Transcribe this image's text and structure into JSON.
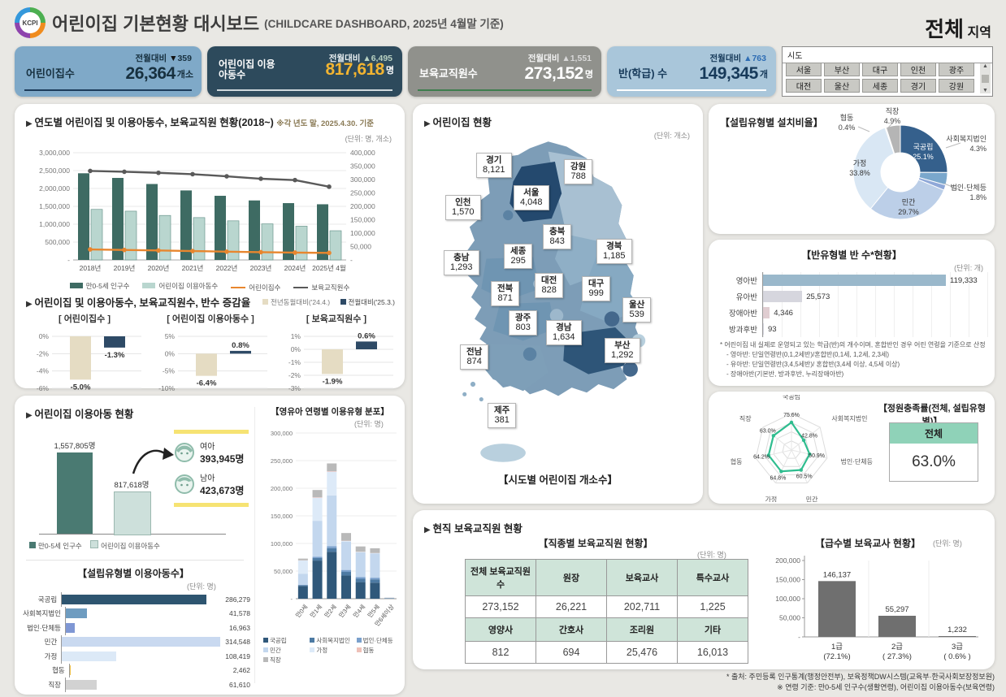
{
  "header": {
    "logo": "KCPI",
    "title": "어린이집 기본현황 대시보드",
    "subtitle": "(CHILDCARE DASHBOARD, 2025년 4월말 기준)",
    "region_value": "전체",
    "region_suffix": "지역"
  },
  "kpis": [
    {
      "label": "어린이집수",
      "value": "26,364",
      "unit": "개소",
      "delta_label": "전월대비",
      "delta_dir": "▼",
      "delta": "359"
    },
    {
      "label": "어린이집 이용아동수",
      "value": "817,618",
      "unit": "명",
      "delta_label": "전월대비",
      "delta_dir": "▲",
      "delta": "6,495"
    },
    {
      "label": "보육교직원수",
      "value": "273,152",
      "unit": "명",
      "delta_label": "전월대비",
      "delta_dir": "▲",
      "delta": "1,551"
    },
    {
      "label": "반(학급) 수",
      "value": "149,345",
      "unit": "개",
      "delta_label": "전월대비",
      "delta_dir": "▲",
      "delta": "763"
    }
  ],
  "sido_filter": {
    "title": "시도",
    "options": [
      "서울",
      "부산",
      "대구",
      "인천",
      "광주",
      "대전",
      "울산",
      "세종",
      "경기",
      "강원"
    ]
  },
  "footer": {
    "line1": "* 출처: 주민등록 인구통계(행정안전부), 보육정책DW시스템(교육부·한국사회보장정보원)",
    "line2": "※ 연령 기준: 만0-5세 인구수(생활연령), 어린이집 이용아동수(보육연령)"
  },
  "section_titles": {
    "staff": "현직 보육교직원 현황"
  },
  "chart_data": [
    {
      "id": "yearly",
      "type": "bar",
      "title": "연도별 어린이집 및 이용아동수, 보육교직원 현황(2018~)",
      "note": "※각 년도 말, 2025.4.30. 기준",
      "unit": "(단위: 명, 개소)",
      "categories": [
        "2018년",
        "2019년",
        "2020년",
        "2021년",
        "2022년",
        "2023년",
        "2024년",
        "2025년 4월"
      ],
      "series": [
        {
          "name": "만0-5세 인구수",
          "chart": "bar",
          "axis": "left",
          "color": "#3e6b63",
          "values": [
            2425000,
            2295000,
            2125000,
            1945000,
            1795000,
            1665000,
            1590000,
            1557805
          ]
        },
        {
          "name": "어린이집 이용아동수",
          "chart": "bar",
          "axis": "left",
          "color": "#b9d6cf",
          "stroke": "#6d988f",
          "values": [
            1415000,
            1365000,
            1245000,
            1185000,
            1095000,
            1010000,
            945000,
            817618
          ]
        },
        {
          "name": "어린이집수",
          "chart": "line",
          "axis": "right",
          "color": "#e8862e",
          "values": [
            39171,
            37371,
            35352,
            33246,
            30923,
            28954,
            27351,
            26364
          ]
        },
        {
          "name": "보육교직원수",
          "chart": "line",
          "axis": "right",
          "color": "#595959",
          "values": [
            332000,
            329000,
            325000,
            320000,
            312000,
            303000,
            298000,
            273152
          ]
        }
      ],
      "left_axis": {
        "min": 0,
        "max": 3000000,
        "tick_labels": [
          "3,000,000",
          "2,500,000",
          "2,000,000",
          "1,500,000",
          "1,000,000",
          "500,000",
          "-"
        ]
      },
      "right_axis": {
        "min": 0,
        "max": 400000,
        "tick_labels": [
          "400,000",
          "350,000",
          "300,000",
          "250,000",
          "200,000",
          "150,000",
          "100,000",
          "50,000",
          "-"
        ]
      }
    },
    {
      "id": "delta",
      "type": "bar",
      "title": "어린이집 및 이용아동수, 보육교직원수, 반수 증감율",
      "legend": [
        "전년동월대비('24.4.)",
        "전월대비('25.3.)"
      ],
      "colors": [
        "#e5dcc3",
        "#2e4a66"
      ],
      "charts": [
        {
          "title": "[ 어린이집수 ]",
          "ticks": [
            "0%",
            "-2%",
            "-4%",
            "-6%"
          ],
          "values": [
            -5.0,
            -1.3
          ],
          "labels": [
            "-5.0%",
            "-1.3%"
          ]
        },
        {
          "title": "[ 어린이집 이용아동수 ]",
          "ticks": [
            "5%",
            "0%",
            "-5%",
            "-10%"
          ],
          "values": [
            -6.4,
            0.8
          ],
          "labels": [
            "-6.4%",
            "0.8%"
          ]
        },
        {
          "title": "[ 보육교직원수 ]",
          "ticks": [
            "1%",
            "0%",
            "-1%",
            "-2%",
            "-3%"
          ],
          "values": [
            -1.9,
            0.6
          ],
          "labels": [
            "-1.9%",
            "0.6%"
          ]
        }
      ]
    },
    {
      "id": "usage",
      "type": "bar",
      "title": "어린이집 이용아동 현황",
      "bars": [
        {
          "name": "만0-5세 인구수",
          "value": 1557805,
          "label": "1,557,805명",
          "color": "#4a7a72"
        },
        {
          "name": "어린이집 이용아동수",
          "value": 817618,
          "label": "817,618명",
          "color": "#cde0db"
        }
      ],
      "gender": [
        {
          "name": "여아",
          "label": "393,945명"
        },
        {
          "name": "남아",
          "label": "423,673명"
        }
      ]
    },
    {
      "id": "type_children",
      "type": "bar",
      "title": "【설립유형별 이용아동수】",
      "unit": "(단위: 명)",
      "categories": [
        "국공립",
        "사회복지법인",
        "법인·단체등",
        "민간",
        "가정",
        "협동",
        "직장"
      ],
      "values": [
        286279,
        41578,
        16963,
        314548,
        108419,
        2462,
        61610
      ],
      "labels": [
        "286,279",
        "41,578",
        "16,963",
        "314,548",
        "108,419",
        "2,462",
        "61,610"
      ],
      "colors": [
        "#2e5570",
        "#6e9cc0",
        "#7f97d4",
        "#c9d9f0",
        "#dce9f7",
        "#f0c24a",
        "#d2d2d2"
      ]
    },
    {
      "id": "age_type",
      "type": "bar",
      "title": "【영유아 연령별 이용유형 분포】",
      "unit": "(단위: 명)",
      "categories": [
        "만0세",
        "만1세",
        "만2세",
        "만3세",
        "만4세",
        "만5세",
        "만6세이상"
      ],
      "y_ticks": [
        "300,000",
        "250,000",
        "200,000",
        "150,000",
        "100,000",
        "50,000",
        "-"
      ],
      "y_max": 300000,
      "series": [
        {
          "name": "국공립",
          "color": "#30587a",
          "values": [
            23000,
            69000,
            85000,
            42000,
            30000,
            29000,
            500
          ]
        },
        {
          "name": "사회복지법인",
          "color": "#4d7aa3",
          "values": [
            1500,
            4500,
            6500,
            6500,
            6000,
            6000,
            300
          ]
        },
        {
          "name": "법인·단체등",
          "color": "#7aa0cc",
          "values": [
            800,
            2500,
            3500,
            3500,
            3000,
            3000,
            200
          ]
        },
        {
          "name": "민간",
          "color": "#c3d7ee",
          "values": [
            20000,
            65000,
            92000,
            51000,
            45000,
            44000,
            600
          ]
        },
        {
          "name": "가정",
          "color": "#ddeaf8",
          "values": [
            24000,
            42000,
            43000,
            1500,
            800,
            500,
            100
          ]
        },
        {
          "name": "협동",
          "color": "#eec0b8",
          "values": [
            300,
            800,
            900,
            400,
            300,
            300,
            50
          ]
        },
        {
          "name": "직장",
          "color": "#b9b9b9",
          "values": [
            3000,
            13000,
            14000,
            14000,
            9500,
            8500,
            250
          ]
        }
      ]
    },
    {
      "id": "install_ratio",
      "type": "pie",
      "title": "【설립유형별 설치비율】",
      "slices": [
        {
          "name": "국공립",
          "pct": 25.1,
          "color": "#35608c"
        },
        {
          "name": "사회복지법인",
          "pct": 4.3,
          "color": "#7aa7cc"
        },
        {
          "name": "법인·단체등",
          "pct": 1.8,
          "color": "#8fa8d8"
        },
        {
          "name": "민간",
          "pct": 29.7,
          "color": "#bccfe8"
        },
        {
          "name": "가정",
          "pct": 33.8,
          "color": "#d9e7f4"
        },
        {
          "name": "협동",
          "pct": 0.4,
          "color": "#ececec"
        },
        {
          "name": "직장",
          "pct": 4.9,
          "color": "#b5b5b5"
        }
      ]
    },
    {
      "id": "class_count",
      "type": "bar",
      "title": "【반유형별 반 수*현황】",
      "unit": "(단위: 개)",
      "categories": [
        "영아반",
        "유아반",
        "장애아반",
        "방과후반"
      ],
      "values": [
        119333,
        25573,
        4346,
        93
      ],
      "labels": [
        "119,333",
        "25,573",
        "4,346",
        "93"
      ],
      "colors": [
        "#9ab8cb",
        "#d6d6de",
        "#e0cdd1",
        "#d6d6de"
      ],
      "footnotes": [
        "* 어린이집 내 실제로 운영되고 있는 학급(반)의 개수이며, 혼합반인 경우 어린 연령을 기준으로 산정",
        "- 영아반: 단일연령반(0,1,2세반)/혼합반(0,1세, 1,2세, 2,3세)",
        "- 유아반: 단일연령반(3,4,5세반)/ 혼합반(3,4세 이상, 4,5세 이상)",
        "- 장애아반(기본반, 방과후반, 누리장애아반)"
      ]
    },
    {
      "id": "occupancy",
      "type": "radar",
      "title": "【정원충족률(전체, 설립유형별)】",
      "axes": [
        "국공립",
        "사회복지법인",
        "법인·단체등",
        "민간",
        "가정",
        "협동",
        "직장"
      ],
      "values": [
        75.6,
        42.8,
        50.9,
        60.5,
        64.8,
        64.2,
        63.0
      ],
      "labels": [
        "75.6%",
        "42.8%",
        "50.9%",
        "60.5%",
        "64.8%",
        "64.2%",
        "63.0%"
      ],
      "color": "#2fbd8f",
      "total_label": "전체",
      "total_value": "63.0%"
    },
    {
      "id": "staff_table",
      "type": "table",
      "title": "【직종별 보육교직원 현황】",
      "unit": "(단위: 명)",
      "rows": [
        {
          "headers": [
            "전체 보육교직원수",
            "원장",
            "보육교사",
            "특수교사"
          ],
          "values": [
            "273,152",
            "26,221",
            "202,711",
            "1,225"
          ]
        },
        {
          "headers": [
            "영양사",
            "간호사",
            "조리원",
            "기타"
          ],
          "values": [
            "812",
            "694",
            "25,476",
            "16,013"
          ]
        }
      ]
    },
    {
      "id": "teacher_grade",
      "type": "bar",
      "title": "【급수별 보육교사 현황】",
      "unit": "(단위: 명)",
      "categories": [
        "1급",
        "2급",
        "3급"
      ],
      "pcts": [
        "(72.1%)",
        "( 27.3%)",
        "( 0.6% )"
      ],
      "values": [
        146137,
        55297,
        1232
      ],
      "labels": [
        "146,137",
        "55,297",
        "1,232"
      ],
      "y_max": 200000,
      "y_ticks": [
        "200,000",
        "150,000",
        "100,000",
        "50,000",
        "-"
      ]
    },
    {
      "id": "map",
      "type": "map",
      "title": "어린이집 현황",
      "unit": "(단위: 개소)",
      "caption": "【시도별 어린이집 개소수】",
      "regions": [
        {
          "name": "경기",
          "value": "8,121"
        },
        {
          "name": "강원",
          "value": "788"
        },
        {
          "name": "서울",
          "value": "4,048"
        },
        {
          "name": "인천",
          "value": "1,570"
        },
        {
          "name": "충북",
          "value": "843"
        },
        {
          "name": "세종",
          "value": "295"
        },
        {
          "name": "경북",
          "value": "1,185"
        },
        {
          "name": "충남",
          "value": "1,293"
        },
        {
          "name": "전북",
          "value": "871"
        },
        {
          "name": "대전",
          "value": "828"
        },
        {
          "name": "대구",
          "value": "999"
        },
        {
          "name": "울산",
          "value": "539"
        },
        {
          "name": "광주",
          "value": "803"
        },
        {
          "name": "경남",
          "value": "1,634"
        },
        {
          "name": "부산",
          "value": "1,292"
        },
        {
          "name": "전남",
          "value": "874"
        },
        {
          "name": "제주",
          "value": "381"
        }
      ]
    }
  ]
}
